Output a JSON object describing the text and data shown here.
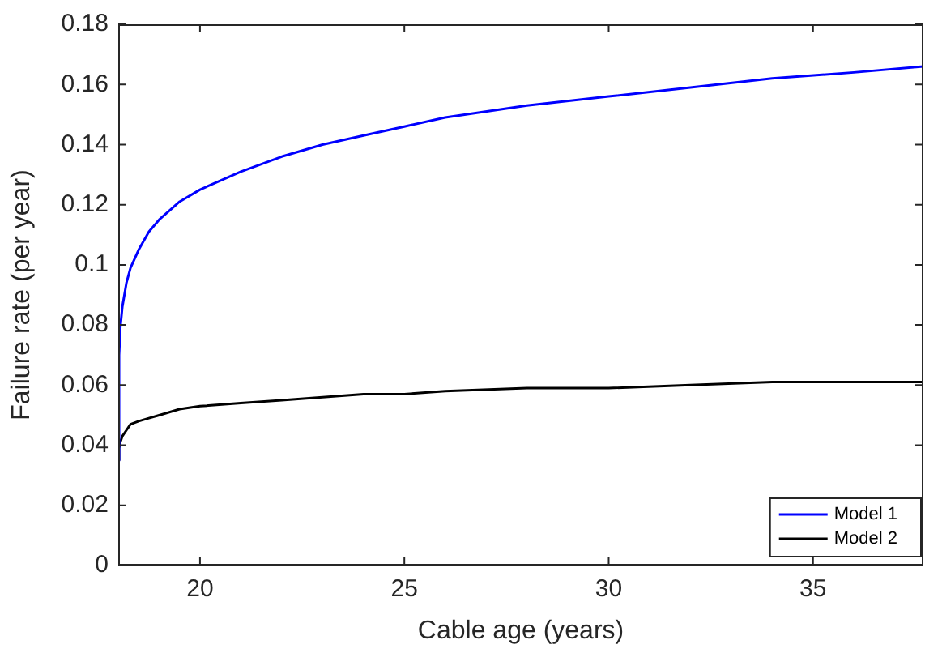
{
  "chart_data": {
    "type": "line",
    "xlabel": "Cable age (years)",
    "ylabel": "Failure rate (per year)",
    "xlim": [
      18,
      37.7
    ],
    "ylim": [
      0,
      0.18
    ],
    "xticks": [
      20,
      25,
      30,
      35
    ],
    "yticks": [
      0,
      0.02,
      0.04,
      0.06,
      0.08,
      0.1,
      0.12,
      0.14,
      0.16,
      0.18
    ],
    "grid": false,
    "legend": "bottom right",
    "marker": "none",
    "line_style": "solid",
    "series": [
      {
        "name": "Model 1",
        "color": "#0000ff",
        "x": [
          18,
          18.02,
          18.05,
          18.1,
          18.2,
          18.3,
          18.5,
          18.75,
          19,
          19.5,
          20,
          21,
          22,
          23,
          24,
          25,
          26,
          28,
          30,
          32,
          34,
          36,
          37.7
        ],
        "values": [
          0.035,
          0.07,
          0.079,
          0.086,
          0.094,
          0.099,
          0.105,
          0.111,
          0.115,
          0.121,
          0.125,
          0.131,
          0.136,
          0.14,
          0.143,
          0.146,
          0.149,
          0.153,
          0.156,
          0.159,
          0.162,
          0.164,
          0.166
        ]
      },
      {
        "name": "Model 2",
        "color": "#000000",
        "x": [
          18,
          18.02,
          18.05,
          18.1,
          18.2,
          18.3,
          18.5,
          18.75,
          19,
          19.5,
          20,
          21,
          22,
          23,
          24,
          25,
          26,
          28,
          30,
          32,
          34,
          36,
          37.7
        ],
        "values": [
          0.035,
          0.039,
          0.041,
          0.043,
          0.045,
          0.047,
          0.048,
          0.049,
          0.05,
          0.052,
          0.053,
          0.054,
          0.055,
          0.056,
          0.057,
          0.057,
          0.058,
          0.059,
          0.059,
          0.06,
          0.061,
          0.061,
          0.061
        ]
      }
    ]
  }
}
